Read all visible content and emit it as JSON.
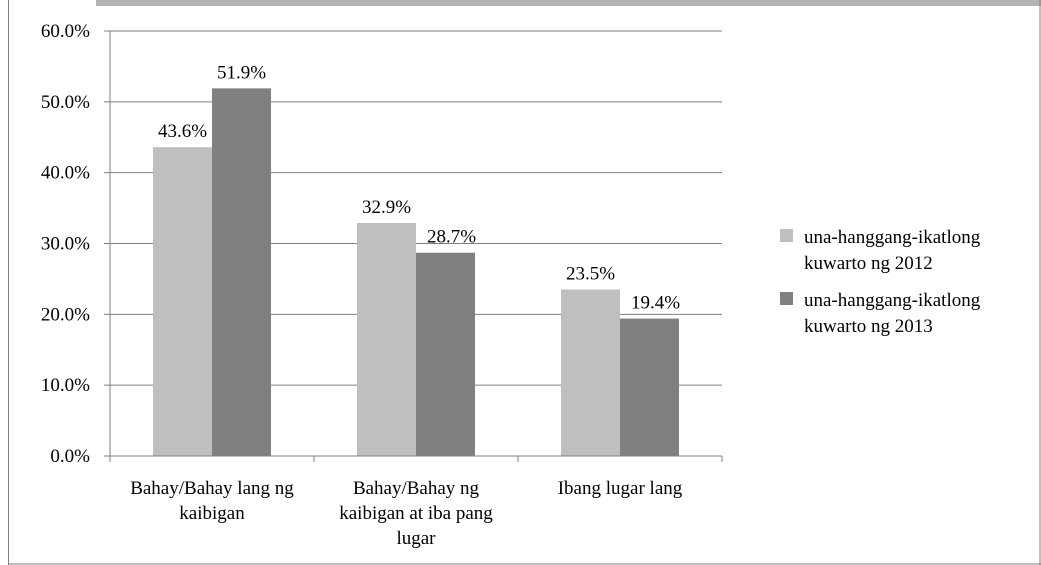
{
  "chart_data": {
    "type": "bar",
    "title": "",
    "xlabel": "",
    "ylabel": "",
    "ylim": [
      0,
      60
    ],
    "yticks": [
      "0.0%",
      "10.0%",
      "20.0%",
      "30.0%",
      "40.0%",
      "50.0%",
      "60.0%"
    ],
    "grid": true,
    "legend_position": "right",
    "categories": [
      [
        "Bahay/Bahay lang ng",
        "kaibigan"
      ],
      [
        "Bahay/Bahay ng",
        "kaibigan at iba pang",
        "lugar"
      ],
      [
        "Ibang lugar lang"
      ]
    ],
    "series": [
      {
        "name": [
          "una-hanggang-ikatlong",
          "kuwarto ng 2012"
        ],
        "color": "#bfbfbf",
        "values": [
          43.6,
          32.9,
          23.5
        ],
        "labels": [
          "43.6%",
          "32.9%",
          "23.5%"
        ]
      },
      {
        "name": [
          "una-hanggang-ikatlong",
          "kuwarto ng 2013"
        ],
        "color": "#808080",
        "values": [
          51.9,
          28.7,
          19.4
        ],
        "labels": [
          "51.9%",
          "28.7%",
          "19.4%"
        ]
      }
    ]
  }
}
